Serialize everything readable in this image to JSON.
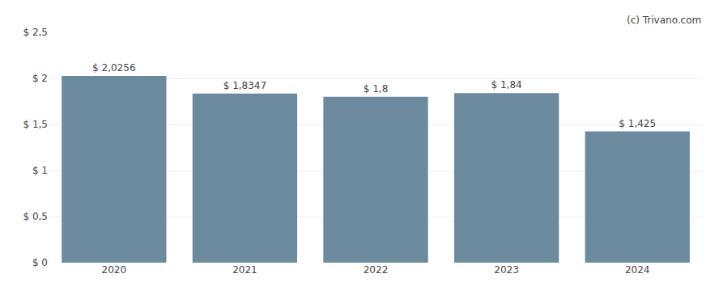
{
  "chart_data": {
    "type": "bar",
    "categories": [
      "2020",
      "2021",
      "2022",
      "2023",
      "2024"
    ],
    "values": [
      2.0256,
      1.8347,
      1.8,
      1.84,
      1.425
    ],
    "value_labels": [
      "$ 2,0256",
      "$ 1,8347",
      "$ 1,8",
      "$ 1,84",
      "$ 1,425"
    ],
    "data_labels": true,
    "color": "#6b8a9e",
    "ylim": [
      0,
      2.5
    ],
    "yticks": [
      {
        "value": 0,
        "label": "$ 0"
      },
      {
        "value": 0.5,
        "label": "$ 0,5"
      },
      {
        "value": 1.0,
        "label": "$ 1"
      },
      {
        "value": 1.5,
        "label": "$ 1,5"
      },
      {
        "value": 2.0,
        "label": "$ 2"
      },
      {
        "value": 2.5,
        "label": "$ 2,5"
      }
    ],
    "grid": true,
    "annotations": [
      "(c) Trivano.com"
    ]
  }
}
